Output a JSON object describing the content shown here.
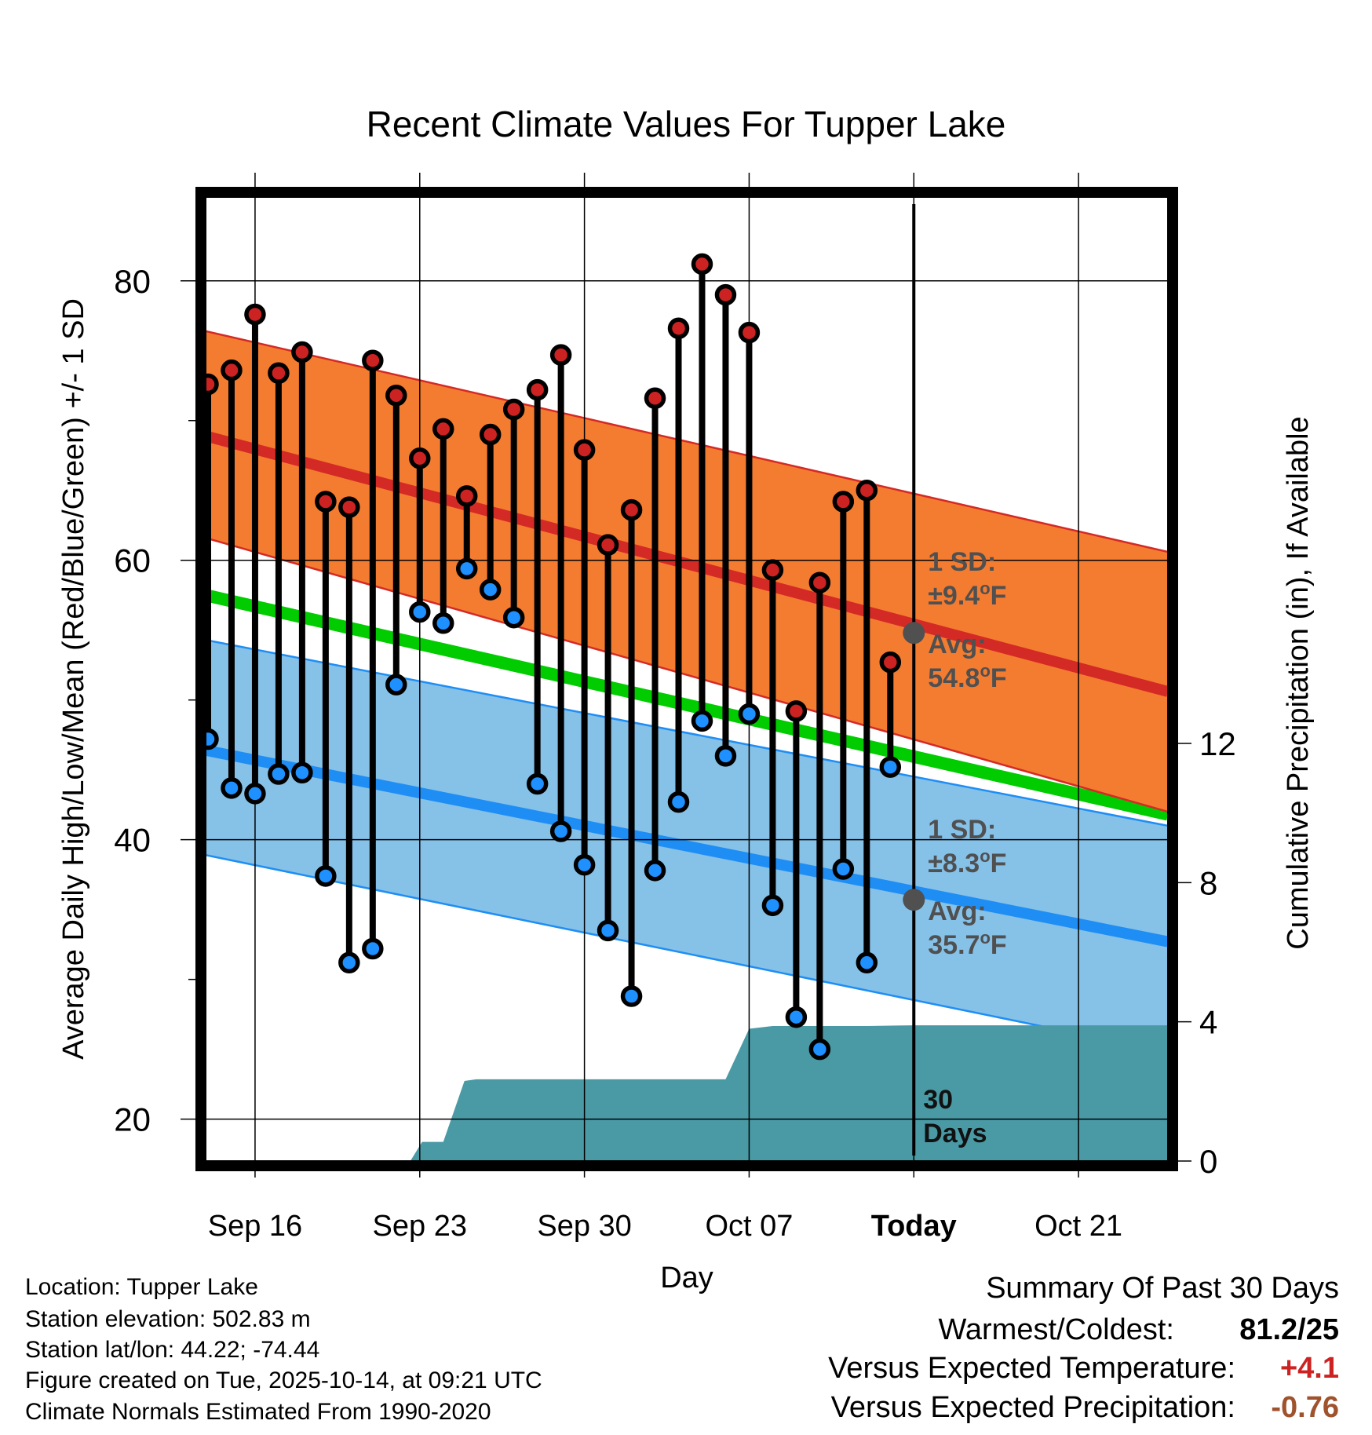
{
  "chart_data": {
    "type": "line",
    "title": "Recent Climate Values For Tupper Lake",
    "xlabel": "Day",
    "ylabel": "Average Daily High/Low/Mean (Red/Blue/Green) +/- 1 SD",
    "y2label": "Cumulative Precipitation (in), If Available",
    "xlim": [
      -2.1,
      38.8
    ],
    "ylim": [
      17,
      86
    ],
    "y2lim": [
      0,
      27.7
    ],
    "x_ticks": [
      {
        "x": 0,
        "label": "Sep 16",
        "bold": false
      },
      {
        "x": 7,
        "label": "Sep 23",
        "bold": false
      },
      {
        "x": 14,
        "label": "Sep 30",
        "bold": false
      },
      {
        "x": 21,
        "label": "Oct 07",
        "bold": false
      },
      {
        "x": 28,
        "label": "Today",
        "bold": true
      },
      {
        "x": 35,
        "label": "Oct 21",
        "bold": false
      }
    ],
    "y_ticks": [
      20,
      40,
      60,
      80
    ],
    "y_minor_ticks": [
      30,
      50,
      70
    ],
    "y2_ticks": [
      0,
      4,
      8,
      12
    ],
    "today_x": 28,
    "normals": {
      "x_start": -2.1,
      "x_end": 38.8,
      "high_mean": [
        68.9,
        50.6
      ],
      "high_upper": [
        76.4,
        60.6
      ],
      "high_lower": [
        61.6,
        42.0
      ],
      "low_mean": [
        46.4,
        32.7
      ],
      "low_upper": [
        54.3,
        41.0
      ],
      "low_lower": [
        38.9,
        24.8
      ],
      "mean": [
        57.5,
        41.8
      ]
    },
    "daily": [
      {
        "day": -2,
        "high": 72.6,
        "low": 47.2
      },
      {
        "day": -1,
        "high": 73.6,
        "low": 43.7
      },
      {
        "day": 0,
        "high": 77.6,
        "low": 43.3
      },
      {
        "day": 1,
        "high": 73.4,
        "low": 44.7
      },
      {
        "day": 2,
        "high": 74.9,
        "low": 44.8
      },
      {
        "day": 3,
        "high": 64.2,
        "low": 37.4
      },
      {
        "day": 4,
        "high": 63.8,
        "low": 31.2
      },
      {
        "day": 5,
        "high": 74.3,
        "low": 32.2
      },
      {
        "day": 6,
        "high": 71.8,
        "low": 51.1
      },
      {
        "day": 7,
        "high": 67.3,
        "low": 56.3
      },
      {
        "day": 8,
        "high": 69.4,
        "low": 55.5
      },
      {
        "day": 9,
        "high": 64.6,
        "low": 59.4
      },
      {
        "day": 10,
        "high": 69.0,
        "low": 57.9
      },
      {
        "day": 11,
        "high": 70.8,
        "low": 55.9
      },
      {
        "day": 12,
        "high": 72.2,
        "low": 44.0
      },
      {
        "day": 13,
        "high": 74.7,
        "low": 40.6
      },
      {
        "day": 14,
        "high": 67.9,
        "low": 38.2
      },
      {
        "day": 15,
        "high": 61.1,
        "low": 33.5
      },
      {
        "day": 16,
        "high": 63.6,
        "low": 28.8
      },
      {
        "day": 17,
        "high": 71.6,
        "low": 37.8
      },
      {
        "day": 18,
        "high": 76.6,
        "low": 42.7
      },
      {
        "day": 19,
        "high": 81.2,
        "low": 48.5
      },
      {
        "day": 20,
        "high": 79.0,
        "low": 46.0
      },
      {
        "day": 21,
        "high": 76.3,
        "low": 49.0
      },
      {
        "day": 22,
        "high": 59.3,
        "low": 35.3
      },
      {
        "day": 23,
        "high": 49.2,
        "low": 27.3
      },
      {
        "day": 24,
        "high": 58.4,
        "low": 25.0
      },
      {
        "day": 25,
        "high": 64.2,
        "low": 37.9
      },
      {
        "day": 26,
        "high": 65.0,
        "low": 31.2
      },
      {
        "day": 27,
        "high": 52.7,
        "low": 45.2
      }
    ],
    "precip_cumulative": [
      {
        "x": 6.6,
        "y": 0
      },
      {
        "x": 7.1,
        "y": 0.55
      },
      {
        "x": 8.0,
        "y": 0.55
      },
      {
        "x": 8.9,
        "y": 2.3
      },
      {
        "x": 9.4,
        "y": 2.35
      },
      {
        "x": 20.0,
        "y": 2.35
      },
      {
        "x": 21.0,
        "y": 3.8
      },
      {
        "x": 22.0,
        "y": 3.88
      },
      {
        "x": 26.0,
        "y": 3.88
      },
      {
        "x": 28.0,
        "y": 3.9
      },
      {
        "x": 38.8,
        "y": 3.9
      }
    ],
    "annotations": {
      "high_sd_line1": "1 SD:",
      "high_sd_line2": "±9.4",
      "high_avg_line1": "Avg:",
      "high_avg_line2": "54.8",
      "low_sd_line1": "1 SD:",
      "low_sd_line2": "±8.3",
      "low_avg_line1": "Avg:",
      "low_avg_line2": "35.7",
      "degree_symbol": "o",
      "unit": "F",
      "days_line1": "30",
      "days_line2": "Days",
      "high_today_value": 54.8,
      "low_today_value": 35.7
    },
    "colors": {
      "high_band": "#f47c30",
      "high_band_edge": "#d42a26",
      "high_mean": "#d42a26",
      "low_band": "#86c1e8",
      "low_band_edge": "#1e8ef5",
      "low_mean": "#1e8ef5",
      "mean": "#00cc00",
      "precip": "#4a9aa5",
      "high_marker": "#cc2222",
      "low_marker": "#1e90ff",
      "annotation": "#505050",
      "stem": "#000000"
    }
  },
  "info": {
    "location": "Location: Tupper Lake",
    "elevation": "Station elevation: 502.83 m",
    "latlon": "Station lat/lon: 44.22; -74.44",
    "created": "Figure created on Tue, 2025-10-14, at 09:21 UTC",
    "normals": "Climate Normals Estimated From 1990-2020"
  },
  "summary": {
    "title": "Summary Of Past 30 Days",
    "warmest_label": "Warmest/Coldest:",
    "warmest_value": "81.2/25",
    "temp_label": "Versus Expected Temperature:",
    "temp_value": "+4.1",
    "temp_color": "#cc2222",
    "precip_label": "Versus Expected Precipitation:",
    "precip_value": "-0.76",
    "precip_color": "#a0522d"
  }
}
